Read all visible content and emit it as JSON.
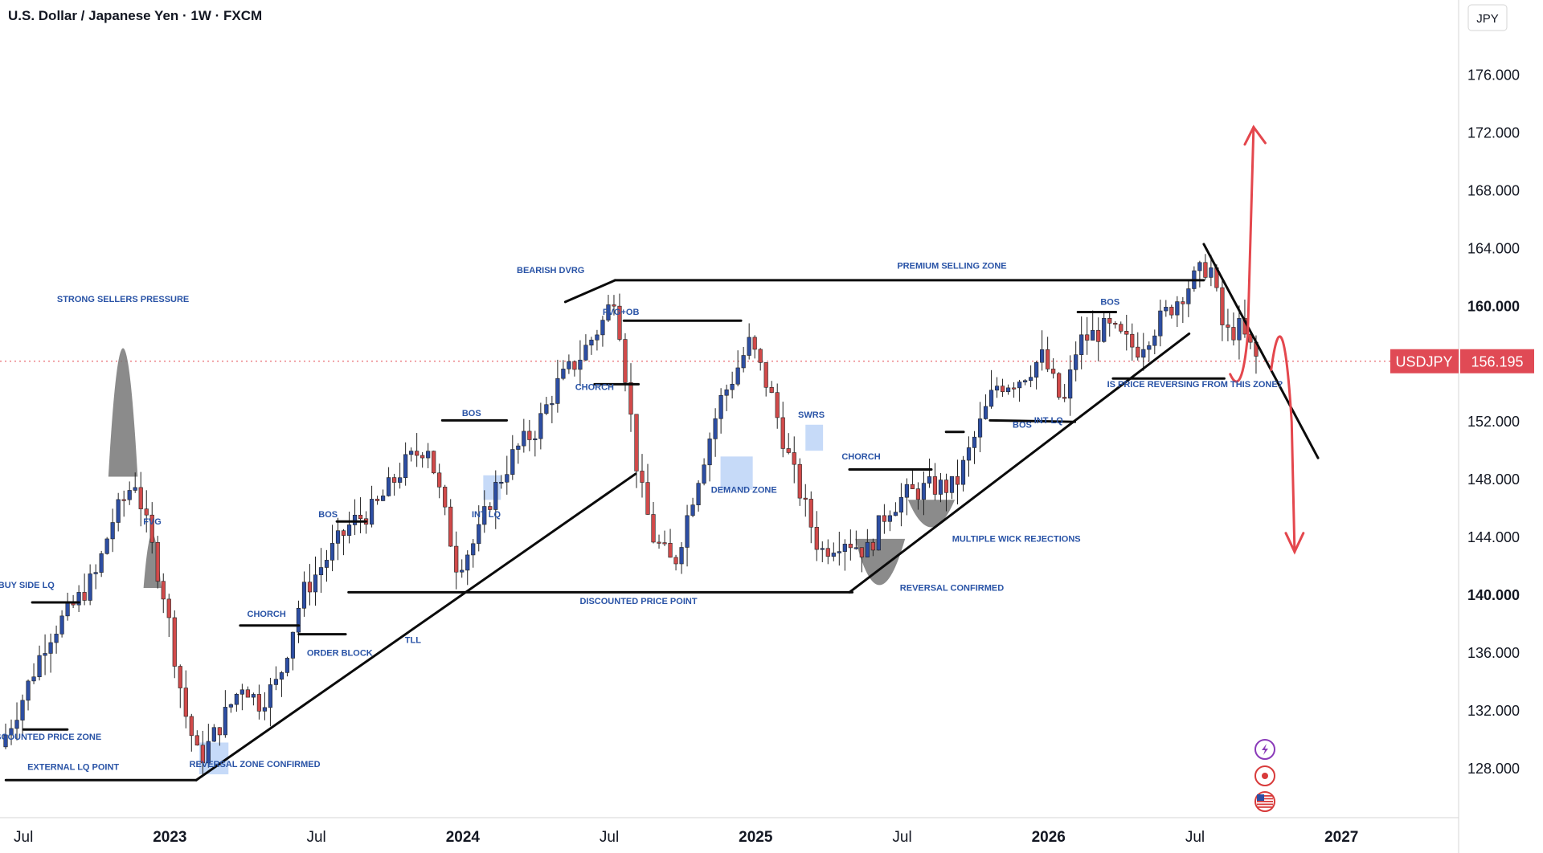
{
  "header": {
    "title": "U.S. Dollar / Japanese Yen · 1W · FXCM"
  },
  "price_axis": {
    "currency": "JPY"
  },
  "ticker": {
    "symbol": "USDJPY",
    "price": "156.195"
  },
  "colors": {
    "bull": "#2d4ea3",
    "bear": "#d14a4a",
    "annotation": "#2953a6",
    "zone": "#bcd3f7",
    "arrow": "#e4474d",
    "grid": "#e6e6e6"
  },
  "chart_data": {
    "type": "candlestick",
    "title": "U.S. Dollar / Japanese Yen · 1W · FXCM",
    "ylim": [
      124.6,
      181.2
    ],
    "y_ticks": [
      128,
      132,
      136,
      140,
      144,
      148,
      152,
      156,
      160,
      164,
      168,
      172,
      176
    ],
    "y_tick_labels": [
      "128.000",
      "132.000",
      "136.000",
      "140.000",
      "144.000",
      "148.000",
      "152.000",
      "156.195",
      "160.000",
      "164.000",
      "168.000",
      "172.000",
      "176.000"
    ],
    "x_tick_labels": [
      "Jul",
      "2023",
      "Jul",
      "2024",
      "Jul",
      "2025",
      "Jul",
      "2026",
      "Jul",
      "2027"
    ],
    "x_ticks": [
      2022.5,
      2023.0,
      2023.5,
      2024.0,
      2024.5,
      2025.0,
      2025.5,
      2026.0,
      2026.5,
      2027.0
    ],
    "x_range": [
      2022.42,
      2027.4
    ],
    "key_points": [
      [
        2022.42,
        129.5
      ],
      [
        2022.5,
        133.0
      ],
      [
        2022.58,
        137.0
      ],
      [
        2022.68,
        139.5
      ],
      [
        2022.75,
        141.5
      ],
      [
        2022.8,
        145.0
      ],
      [
        2022.88,
        148.0
      ],
      [
        2022.98,
        140.0
      ],
      [
        2023.05,
        132.0
      ],
      [
        2023.1,
        128.5
      ],
      [
        2023.17,
        131.0
      ],
      [
        2023.25,
        134.0
      ],
      [
        2023.3,
        132.5
      ],
      [
        2023.37,
        134.0
      ],
      [
        2023.45,
        140.0
      ],
      [
        2023.55,
        143.0
      ],
      [
        2023.62,
        145.0
      ],
      [
        2023.7,
        146.0
      ],
      [
        2023.8,
        149.0
      ],
      [
        2023.88,
        150.5
      ],
      [
        2023.98,
        142.0
      ],
      [
        2024.05,
        144.0
      ],
      [
        2024.1,
        147.0
      ],
      [
        2024.18,
        150.0
      ],
      [
        2024.25,
        151.5
      ],
      [
        2024.32,
        154.5
      ],
      [
        2024.4,
        156.5
      ],
      [
        2024.48,
        159.0
      ],
      [
        2024.52,
        161.0
      ],
      [
        2024.6,
        148.0
      ],
      [
        2024.65,
        144.0
      ],
      [
        2024.72,
        142.0
      ],
      [
        2024.8,
        148.0
      ],
      [
        2024.88,
        153.5
      ],
      [
        2024.92,
        155.0
      ],
      [
        2024.98,
        157.5
      ],
      [
        2025.05,
        154.0
      ],
      [
        2025.12,
        149.0
      ],
      [
        2025.22,
        143.0
      ],
      [
        2025.3,
        144.0
      ],
      [
        2025.38,
        143.0
      ],
      [
        2025.45,
        146.0
      ],
      [
        2025.52,
        147.0
      ],
      [
        2025.6,
        147.5
      ],
      [
        2025.68,
        147.5
      ],
      [
        2025.75,
        151.0
      ],
      [
        2025.82,
        154.5
      ],
      [
        2025.9,
        155.0
      ],
      [
        2025.98,
        156.5
      ],
      [
        2026.05,
        153.0
      ],
      [
        2026.1,
        157.5
      ],
      [
        2026.2,
        158.5
      ],
      [
        2026.3,
        157.0
      ],
      [
        2026.38,
        159.0
      ],
      [
        2026.48,
        161.5
      ],
      [
        2026.55,
        163.0
      ],
      [
        2026.6,
        158.0
      ],
      [
        2026.65,
        158.5
      ],
      [
        2026.72,
        156.0
      ]
    ],
    "annotations": [
      {
        "text": "STRONG SELLERS PRESSURE",
        "x": 2022.84,
        "y": 160.3
      },
      {
        "text": "FVG",
        "x": 2022.94,
        "y": 144.9
      },
      {
        "text": "BUY SIDE LQ",
        "x": 2022.51,
        "y": 140.5
      },
      {
        "text": "DISCOUNTED PRICE ZONE",
        "x": 2022.57,
        "y": 130.0
      },
      {
        "text": "EXTERNAL LQ POINT",
        "x": 2022.67,
        "y": 127.9
      },
      {
        "text": "REVERSAL ZONE CONFIRMED",
        "x": 2023.29,
        "y": 128.1
      },
      {
        "text": "CHORCH",
        "x": 2023.33,
        "y": 138.5
      },
      {
        "text": "ORDER BLOCK",
        "x": 2023.58,
        "y": 135.8
      },
      {
        "text": "BOS",
        "x": 2023.54,
        "y": 145.4
      },
      {
        "text": "TLL",
        "x": 2023.83,
        "y": 136.7
      },
      {
        "text": "BOS",
        "x": 2024.03,
        "y": 152.4
      },
      {
        "text": "INT LQ",
        "x": 2024.08,
        "y": 145.4
      },
      {
        "text": "BEARISH DVRG",
        "x": 2024.3,
        "y": 162.3
      },
      {
        "text": "FVG+OB",
        "x": 2024.54,
        "y": 159.4
      },
      {
        "text": "CHORCH",
        "x": 2024.45,
        "y": 154.2
      },
      {
        "text": "DISCOUNTED PRICE POINT",
        "x": 2024.6,
        "y": 139.4
      },
      {
        "text": "DEMAND ZONE",
        "x": 2024.96,
        "y": 147.1
      },
      {
        "text": "SWRS",
        "x": 2025.19,
        "y": 152.3
      },
      {
        "text": "CHORCH",
        "x": 2025.36,
        "y": 149.4
      },
      {
        "text": "REVERSAL CONFIRMED",
        "x": 2025.67,
        "y": 140.3
      },
      {
        "text": "MULTIPLE WICK REJECTIONS",
        "x": 2025.89,
        "y": 143.7
      },
      {
        "text": "BOS",
        "x": 2025.91,
        "y": 151.6
      },
      {
        "text": "INT LQ",
        "x": 2026.0,
        "y": 151.9
      },
      {
        "text": "PREMIUM SELLING ZONE",
        "x": 2025.67,
        "y": 162.6
      },
      {
        "text": "BOS",
        "x": 2026.21,
        "y": 160.1
      },
      {
        "text": "IS PRICE REVERSING FROM THIS ZONE?",
        "x": 2026.5,
        "y": 154.4
      }
    ]
  }
}
